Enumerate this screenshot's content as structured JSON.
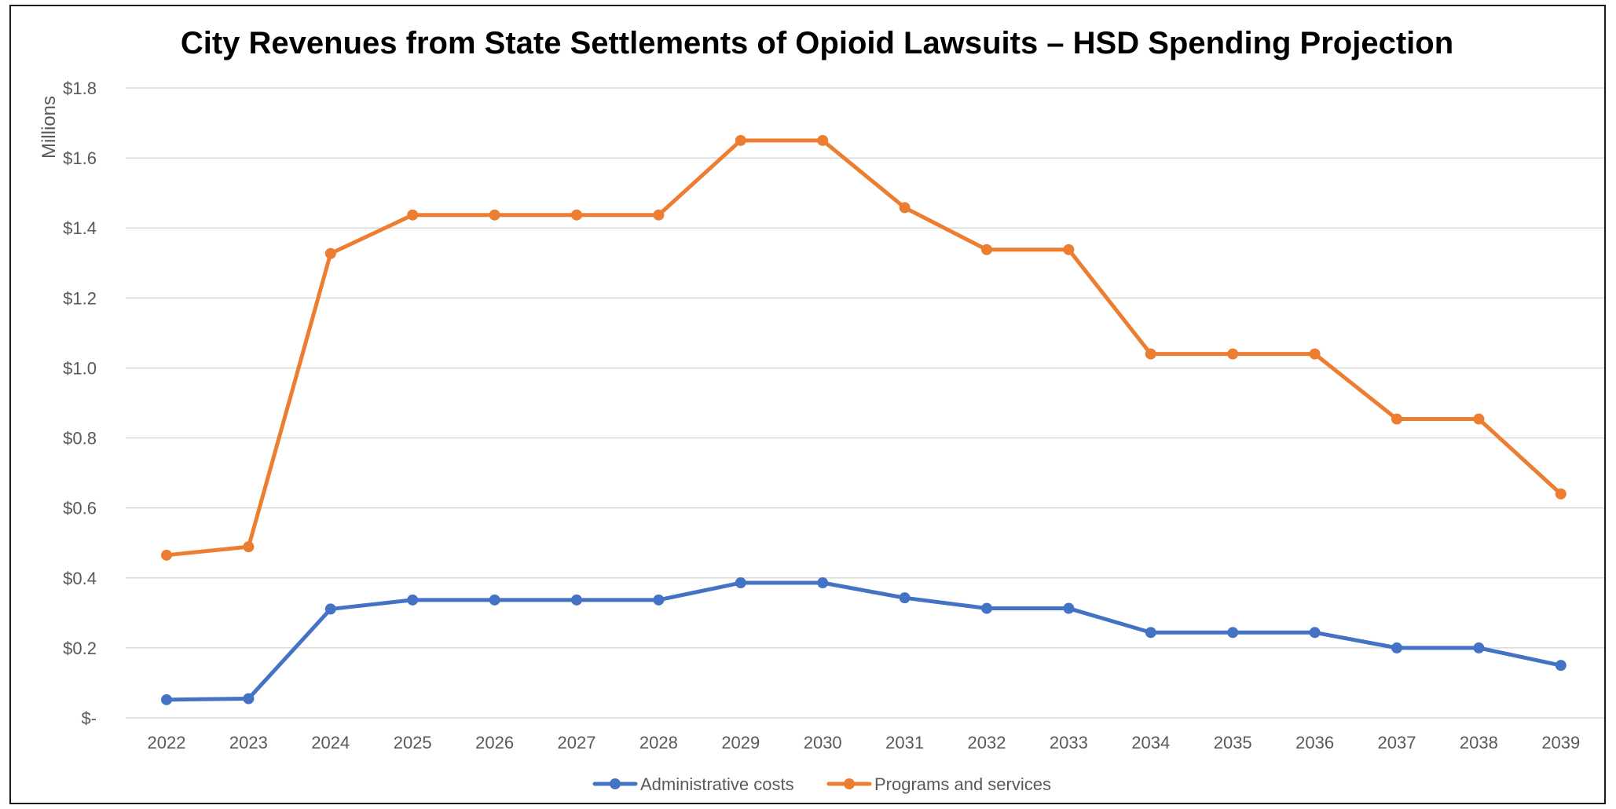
{
  "chart_data": {
    "type": "line",
    "title": "City Revenues from State Settlements of Opioid Lawsuits – HSD Spending Projection",
    "ylabel": "Millions",
    "xlabel": "",
    "ylim": [
      0,
      1.8
    ],
    "yticks": [
      0,
      0.2,
      0.4,
      0.6,
      0.8,
      1.0,
      1.2,
      1.4,
      1.6,
      1.8
    ],
    "ytick_labels": [
      "$-",
      "$0.2",
      "$0.4",
      "$0.6",
      "$0.8",
      "$1.0",
      "$1.2",
      "$1.4",
      "$1.6",
      "$1.8"
    ],
    "grid": true,
    "legend_position": "bottom",
    "categories": [
      "2022",
      "2023",
      "2024",
      "2025",
      "2026",
      "2027",
      "2028",
      "2029",
      "2030",
      "2031",
      "2032",
      "2033",
      "2034",
      "2035",
      "2036",
      "2037",
      "2038",
      "2039"
    ],
    "series": [
      {
        "name": "Administrative costs",
        "color": "#4472c4",
        "values": [
          0.052,
          0.055,
          0.311,
          0.337,
          0.337,
          0.337,
          0.337,
          0.386,
          0.386,
          0.343,
          0.313,
          0.313,
          0.244,
          0.244,
          0.244,
          0.2,
          0.2,
          0.15
        ]
      },
      {
        "name": "Programs and services",
        "color": "#ed7d31",
        "values": [
          0.465,
          0.489,
          1.327,
          1.437,
          1.437,
          1.437,
          1.437,
          1.65,
          1.65,
          1.458,
          1.338,
          1.338,
          1.04,
          1.04,
          1.04,
          0.854,
          0.854,
          0.64
        ]
      }
    ]
  }
}
